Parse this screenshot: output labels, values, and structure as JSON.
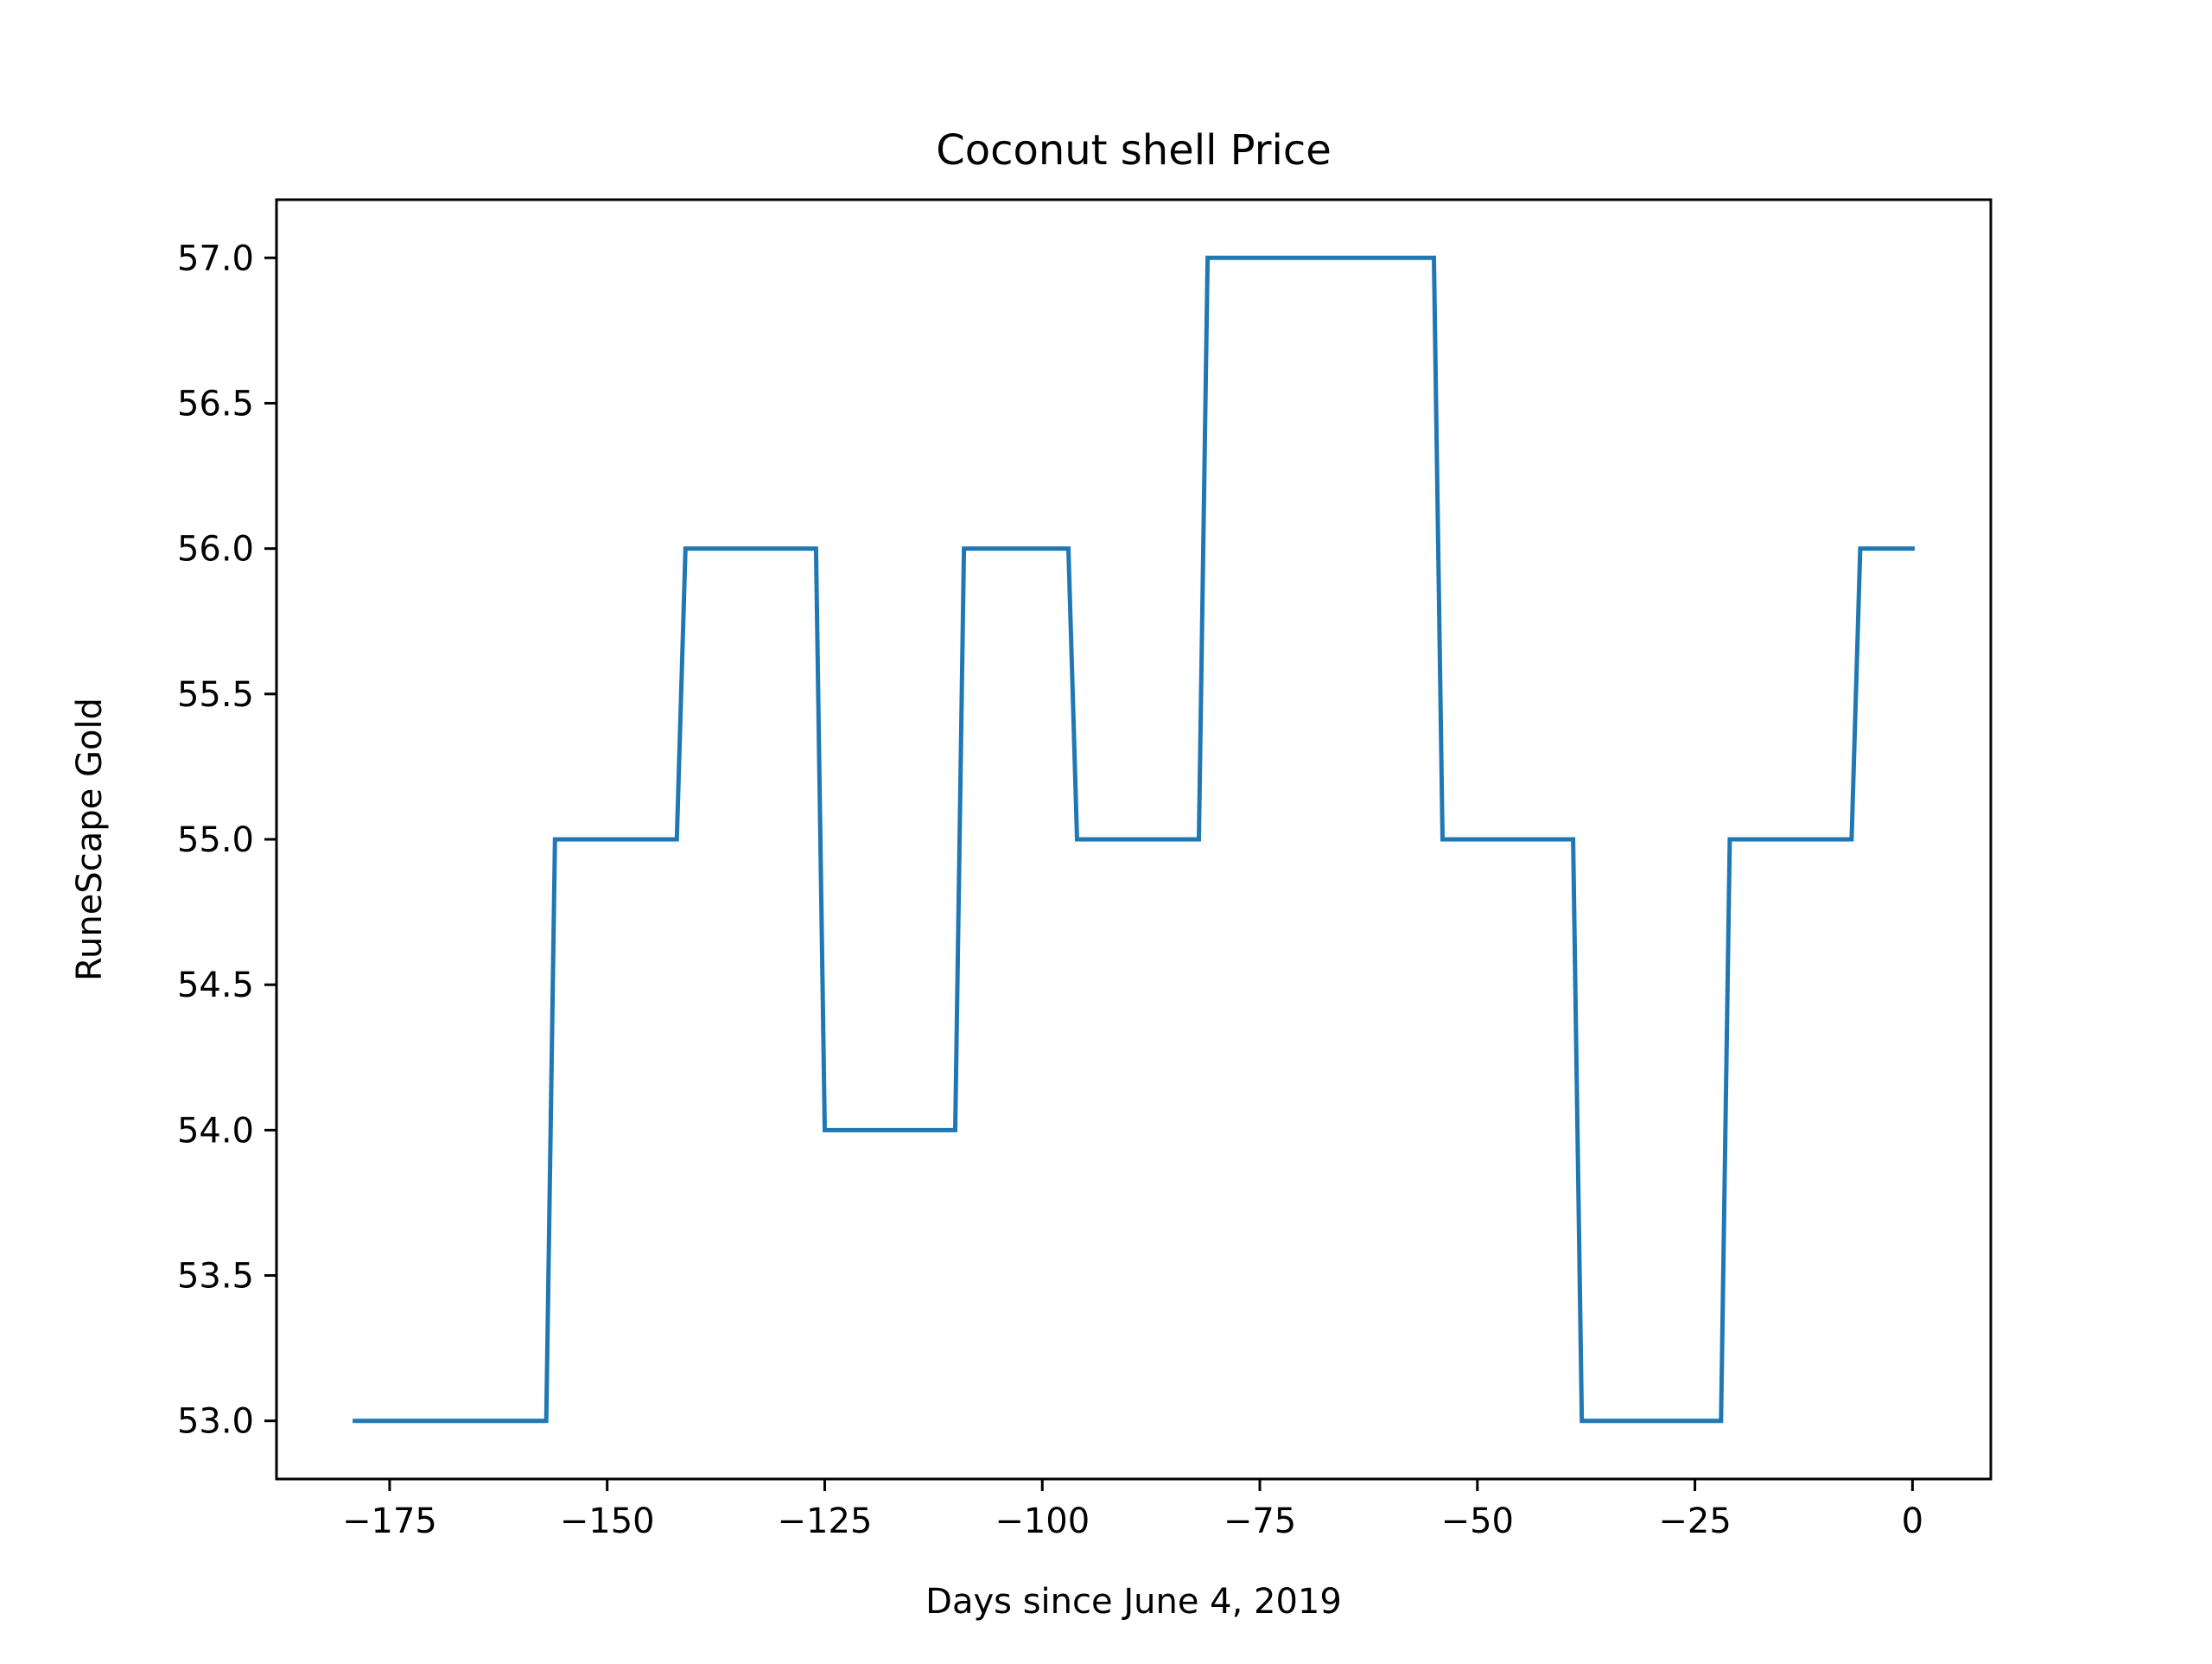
{
  "chart_data": {
    "type": "line",
    "title": "Coconut shell Price",
    "xlabel": "Days since June 4, 2019",
    "ylabel": "RuneScape Gold",
    "xlim": [
      -188,
      9
    ],
    "ylim": [
      52.8,
      57.2
    ],
    "x_ticks": [
      -175,
      -150,
      -125,
      -100,
      -75,
      -50,
      -25,
      0
    ],
    "x_tick_labels": [
      "−175",
      "−150",
      "−125",
      "−100",
      "−75",
      "−50",
      "−25",
      "0"
    ],
    "y_ticks": [
      53.0,
      53.5,
      54.0,
      54.5,
      55.0,
      55.5,
      56.0,
      56.5,
      57.0
    ],
    "y_tick_labels": [
      "53.0",
      "53.5",
      "54.0",
      "54.5",
      "55.0",
      "55.5",
      "56.0",
      "56.5",
      "57.0"
    ],
    "grid": false,
    "legend": "none",
    "series": [
      {
        "color": "#1f77b4",
        "x": [
          -179,
          -157,
          -156,
          -142,
          -141,
          -126,
          -125,
          -110,
          -109,
          -97,
          -96,
          -82,
          -81,
          -55,
          -54,
          -39,
          -38,
          -22,
          -21,
          -7,
          -6,
          0
        ],
        "values": [
          53,
          53,
          55,
          55,
          56,
          56,
          54,
          54,
          56,
          56,
          55,
          55,
          57,
          57,
          55,
          55,
          53,
          53,
          55,
          55,
          56,
          56
        ]
      }
    ]
  }
}
